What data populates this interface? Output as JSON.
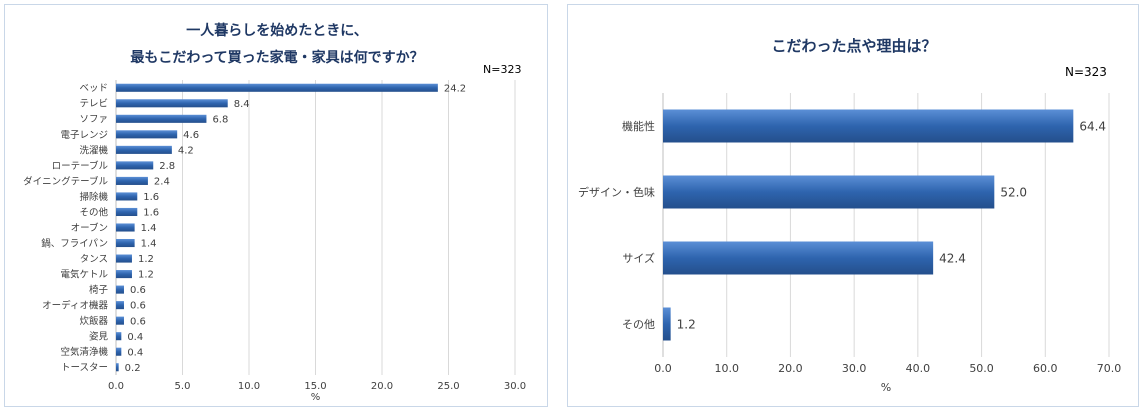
{
  "colors": {
    "bar": "#2e64ae",
    "bar_light": "#5b8fd6",
    "title": "#1f3864",
    "grid": "#d9d9d9"
  },
  "chart_data": [
    {
      "type": "bar",
      "orientation": "horizontal",
      "title_lines": [
        "一人暮らしを始めたときに、",
        "最もこだわって買った家電・家具は何ですか？"
      ],
      "n_label": "N=323",
      "xlabel": "%",
      "xlim": [
        0,
        30
      ],
      "xticks": [
        "0.0",
        "5.0",
        "10.0",
        "15.0",
        "20.0",
        "25.0",
        "30.0"
      ],
      "categories": [
        "ベッド",
        "テレビ",
        "ソファ",
        "電子レンジ",
        "洗濯機",
        "ローテーブル",
        "ダイニングテーブル",
        "掃除機",
        "その他",
        "オーブン",
        "鍋、フライパン",
        "タンス",
        "電気ケトル",
        "椅子",
        "オーディオ機器",
        "炊飯器",
        "姿見",
        "空気清浄機",
        "トースター"
      ],
      "values": [
        24.2,
        8.4,
        6.8,
        4.6,
        4.2,
        2.8,
        2.4,
        1.6,
        1.6,
        1.4,
        1.4,
        1.2,
        1.2,
        0.6,
        0.6,
        0.6,
        0.4,
        0.4,
        0.2
      ],
      "value_labels": [
        "24.2",
        "8.4",
        "6.8",
        "4.6",
        "4.2",
        "2.8",
        "2.4",
        "1.6",
        "1.6",
        "1.4",
        "1.4",
        "1.2",
        "1.2",
        "0.6",
        "0.6",
        "0.6",
        "0.4",
        "0.4",
        "0.2"
      ],
      "grid": true
    },
    {
      "type": "bar",
      "orientation": "horizontal",
      "title_lines": [
        "こだわった点や理由は？"
      ],
      "n_label": "N=323",
      "xlabel": "%",
      "xlim": [
        0,
        70
      ],
      "xticks": [
        "0.0",
        "10.0",
        "20.0",
        "30.0",
        "40.0",
        "50.0",
        "60.0",
        "70.0"
      ],
      "categories": [
        "機能性",
        "デザイン・色味",
        "サイズ",
        "その他"
      ],
      "values": [
        64.4,
        52.0,
        42.4,
        1.2
      ],
      "value_labels": [
        "64.4",
        "52.0",
        "42.4",
        "1.2"
      ],
      "grid": true
    }
  ]
}
